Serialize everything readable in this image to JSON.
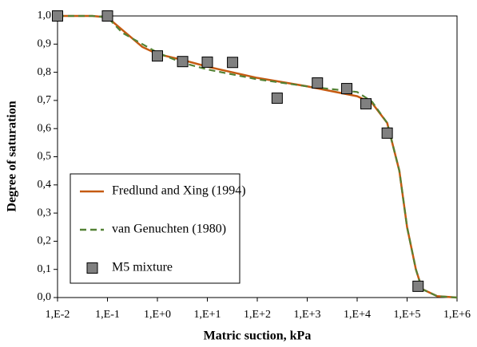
{
  "chart_data": {
    "type": "scatter",
    "xlabel": "Matric suction, kPa",
    "ylabel": "Degree of saturation",
    "xscale": "log",
    "xlim": [
      0.01,
      1000000
    ],
    "xticks": [
      {
        "value": 0.01,
        "label": "1,E-2"
      },
      {
        "value": 0.1,
        "label": "1,E-1"
      },
      {
        "value": 1,
        "label": "1,E+0"
      },
      {
        "value": 10,
        "label": "1,E+1"
      },
      {
        "value": 100,
        "label": "1,E+2"
      },
      {
        "value": 1000,
        "label": "1,E+3"
      },
      {
        "value": 10000,
        "label": "1,E+4"
      },
      {
        "value": 100000,
        "label": "1,E+5"
      },
      {
        "value": 1000000,
        "label": "1,E+6"
      }
    ],
    "ylim": [
      0,
      1
    ],
    "yticks": [
      {
        "value": 0,
        "label": "0,0"
      },
      {
        "value": 0.1,
        "label": "0,1"
      },
      {
        "value": 0.2,
        "label": "0,2"
      },
      {
        "value": 0.3,
        "label": "0,3"
      },
      {
        "value": 0.4,
        "label": "0,4"
      },
      {
        "value": 0.5,
        "label": "0,5"
      },
      {
        "value": 0.6,
        "label": "0,6"
      },
      {
        "value": 0.7,
        "label": "0,7"
      },
      {
        "value": 0.8,
        "label": "0,8"
      },
      {
        "value": 0.9,
        "label": "0,9"
      },
      {
        "value": 1,
        "label": "1,0"
      }
    ],
    "grid": false,
    "legend": "lower left",
    "series": [
      {
        "name": "Fredlund and Xing (1994)",
        "kind": "line",
        "color": "#c55a11",
        "dashed": false,
        "x": [
          0.01,
          0.05,
          0.1,
          0.2,
          0.5,
          1,
          3,
          10,
          100,
          1000,
          10000,
          20000,
          40000,
          70000,
          100000,
          150000,
          200000,
          400000,
          1000000
        ],
        "values": [
          1.0,
          1.0,
          0.995,
          0.95,
          0.89,
          0.865,
          0.845,
          0.82,
          0.78,
          0.75,
          0.715,
          0.69,
          0.62,
          0.45,
          0.25,
          0.1,
          0.03,
          0.005,
          0
        ]
      },
      {
        "name": "van Genuchten (1980)",
        "kind": "line",
        "color": "#548235",
        "dashed": true,
        "x": [
          0.01,
          0.05,
          0.1,
          0.2,
          0.5,
          1,
          3,
          10,
          100,
          1000,
          10000,
          20000,
          40000,
          70000,
          100000,
          150000,
          200000,
          400000,
          1000000
        ],
        "values": [
          1.0,
          1.0,
          0.995,
          0.94,
          0.9,
          0.87,
          0.835,
          0.81,
          0.775,
          0.75,
          0.73,
          0.695,
          0.62,
          0.45,
          0.25,
          0.1,
          0.03,
          0.005,
          0
        ]
      },
      {
        "name": "M5 mixture",
        "kind": "points",
        "color": "#808080",
        "x": [
          0.01,
          0.1,
          1,
          3.2,
          10,
          32,
          250,
          1600,
          6200,
          15000,
          40000,
          166000
        ],
        "values": [
          1.0,
          1.0,
          0.858,
          0.838,
          0.836,
          0.835,
          0.708,
          0.762,
          0.742,
          0.688,
          0.584,
          0.04
        ]
      }
    ]
  }
}
